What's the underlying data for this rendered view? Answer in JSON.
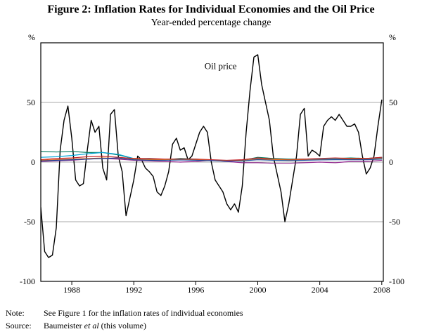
{
  "figure": {
    "note_label": "Note:",
    "note_text": "See Figure 1 for the inflation rates of individual economies",
    "source_label": "Source:",
    "source_pre": "Baumeister ",
    "source_italic": "et al",
    "source_post": " (this volume)"
  },
  "chart_data": {
    "type": "line",
    "title": "Figure 2: Inflation Rates for Individual Economies and the Oil Price",
    "subtitle": "Year-ended percentage change",
    "unit": "%",
    "xlim": [
      1986,
      2008.1
    ],
    "ylim": [
      -100,
      100
    ],
    "yticks": [
      50,
      0,
      -50,
      -100
    ],
    "gridlines": [
      50,
      0,
      -50
    ],
    "xticks": [
      1988,
      1992,
      1996,
      2000,
      2004,
      2008
    ],
    "legend_position": "none",
    "grid": "horizontal",
    "annotation": {
      "text": "Oil price",
      "x": 1997.6,
      "y": 78
    },
    "series": [
      {
        "name": "oil-price",
        "color": "#000000",
        "width": 1.4,
        "x_start": 1986,
        "x_step": 0.25,
        "values": [
          -38,
          -75,
          -80,
          -78,
          -55,
          10,
          35,
          47,
          20,
          -15,
          -20,
          -18,
          10,
          35,
          25,
          30,
          -5,
          -15,
          40,
          44,
          5,
          -8,
          -45,
          -30,
          -15,
          5,
          2,
          -5,
          -8,
          -12,
          -25,
          -28,
          -20,
          -8,
          15,
          20,
          10,
          12,
          2,
          5,
          15,
          25,
          30,
          25,
          0,
          -15,
          -20,
          -25,
          -35,
          -40,
          -35,
          -42,
          -20,
          25,
          60,
          88,
          90,
          65,
          50,
          35,
          5,
          -10,
          -25,
          -50,
          -35,
          -15,
          5,
          40,
          45,
          5,
          10,
          8,
          5,
          30,
          35,
          38,
          35,
          40,
          35,
          30,
          30,
          32,
          25,
          5,
          -10,
          -5,
          5,
          30,
          52
        ]
      },
      {
        "name": "inflation-economy-1",
        "color": "#00795f",
        "width": 1.2,
        "x_start": 1986,
        "x_step": 1,
        "values": [
          9.0,
          8.5,
          9.0,
          8.0,
          8.0,
          6.0,
          3.0,
          2.5,
          2.0,
          3.0,
          2.5,
          1.5,
          1.0,
          1.5,
          4.0,
          3.0,
          2.5,
          2.5,
          2.5,
          3.0,
          3.5,
          3.0,
          4.0
        ]
      },
      {
        "name": "inflation-economy-2",
        "color": "#00a5d8",
        "width": 1.2,
        "x_start": 1986,
        "x_step": 1,
        "values": [
          4.0,
          4.5,
          5.5,
          7.0,
          8.0,
          6.5,
          3.0,
          2.0,
          1.8,
          2.2,
          2.0,
          1.5,
          1.2,
          1.0,
          3.0,
          2.0,
          1.8,
          2.0,
          2.3,
          2.8,
          2.5,
          2.3,
          3.5
        ]
      },
      {
        "name": "inflation-economy-3",
        "color": "#c62227",
        "width": 1.2,
        "x_start": 1986,
        "x_step": 1,
        "values": [
          2.0,
          3.0,
          3.5,
          4.5,
          5.0,
          4.0,
          3.0,
          3.0,
          2.5,
          2.5,
          2.5,
          2.0,
          1.5,
          2.0,
          3.5,
          2.5,
          2.0,
          2.5,
          3.0,
          3.5,
          3.0,
          3.0,
          4.0
        ]
      },
      {
        "name": "inflation-economy-4",
        "color": "#e8701a",
        "width": 1.2,
        "x_start": 1986,
        "x_step": 1,
        "values": [
          1.5,
          2.0,
          2.5,
          3.0,
          3.5,
          3.0,
          2.5,
          2.0,
          2.0,
          2.0,
          1.8,
          1.5,
          1.0,
          1.2,
          2.5,
          2.2,
          1.8,
          1.8,
          2.0,
          2.2,
          2.5,
          2.2,
          3.0
        ]
      },
      {
        "name": "inflation-economy-5",
        "color": "#92278f",
        "width": 1.2,
        "x_start": 1986,
        "x_step": 1,
        "values": [
          0.5,
          1.0,
          1.5,
          2.5,
          3.0,
          2.5,
          1.5,
          1.0,
          0.5,
          0.0,
          0.5,
          1.5,
          0.5,
          -0.5,
          -0.5,
          -1.0,
          -1.0,
          -0.5,
          0.0,
          -0.5,
          0.5,
          0.5,
          1.5
        ]
      },
      {
        "name": "inflation-economy-6",
        "color": "#1b4fa0",
        "width": 1.2,
        "x_start": 1986,
        "x_step": 1,
        "values": [
          1.0,
          1.5,
          2.0,
          2.5,
          3.0,
          3.5,
          2.0,
          1.5,
          1.5,
          1.8,
          1.5,
          1.2,
          0.8,
          1.0,
          2.0,
          1.5,
          1.3,
          1.5,
          1.8,
          2.0,
          2.0,
          2.0,
          2.5
        ]
      }
    ]
  }
}
